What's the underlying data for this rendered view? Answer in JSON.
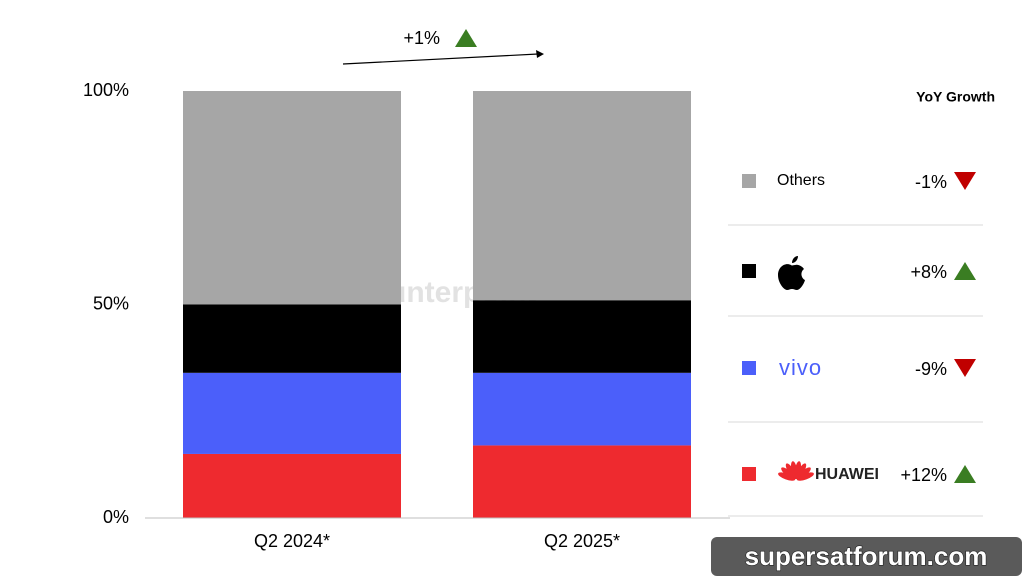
{
  "chart_data": {
    "type": "stacked_bar",
    "categories": [
      "Q2 2024*",
      "Q2 2025*"
    ],
    "series": [
      {
        "name": "HUAWEI",
        "color": "#ee2a2f",
        "values": [
          15,
          17
        ],
        "growth": 12,
        "growth_label": "+12%"
      },
      {
        "name": "vivo",
        "color": "#4b5ffa",
        "values": [
          19,
          17
        ],
        "growth": -9,
        "growth_label": "-9%"
      },
      {
        "name": null,
        "color": "#000000",
        "values": [
          16,
          17
        ],
        "growth": 8,
        "growth_label": "+8%"
      },
      {
        "name": "Others",
        "color": "#a6a6a6",
        "values": [
          50,
          49
        ],
        "growth": -1,
        "growth_label": "-1%"
      }
    ],
    "ylim": [
      0,
      100
    ],
    "yticks": [
      {
        "value": 0,
        "label": "0%"
      },
      {
        "value": 50,
        "label": "50%"
      },
      {
        "value": 100,
        "label": "100%"
      }
    ],
    "growth_header": "YoY Growth",
    "total_growth": 1,
    "total_growth_label": "+1%",
    "up_color": "#3a7d22",
    "down_color": "#c00000",
    "watermark": "Counterpoint",
    "site_badge": "supersatforum.com"
  }
}
